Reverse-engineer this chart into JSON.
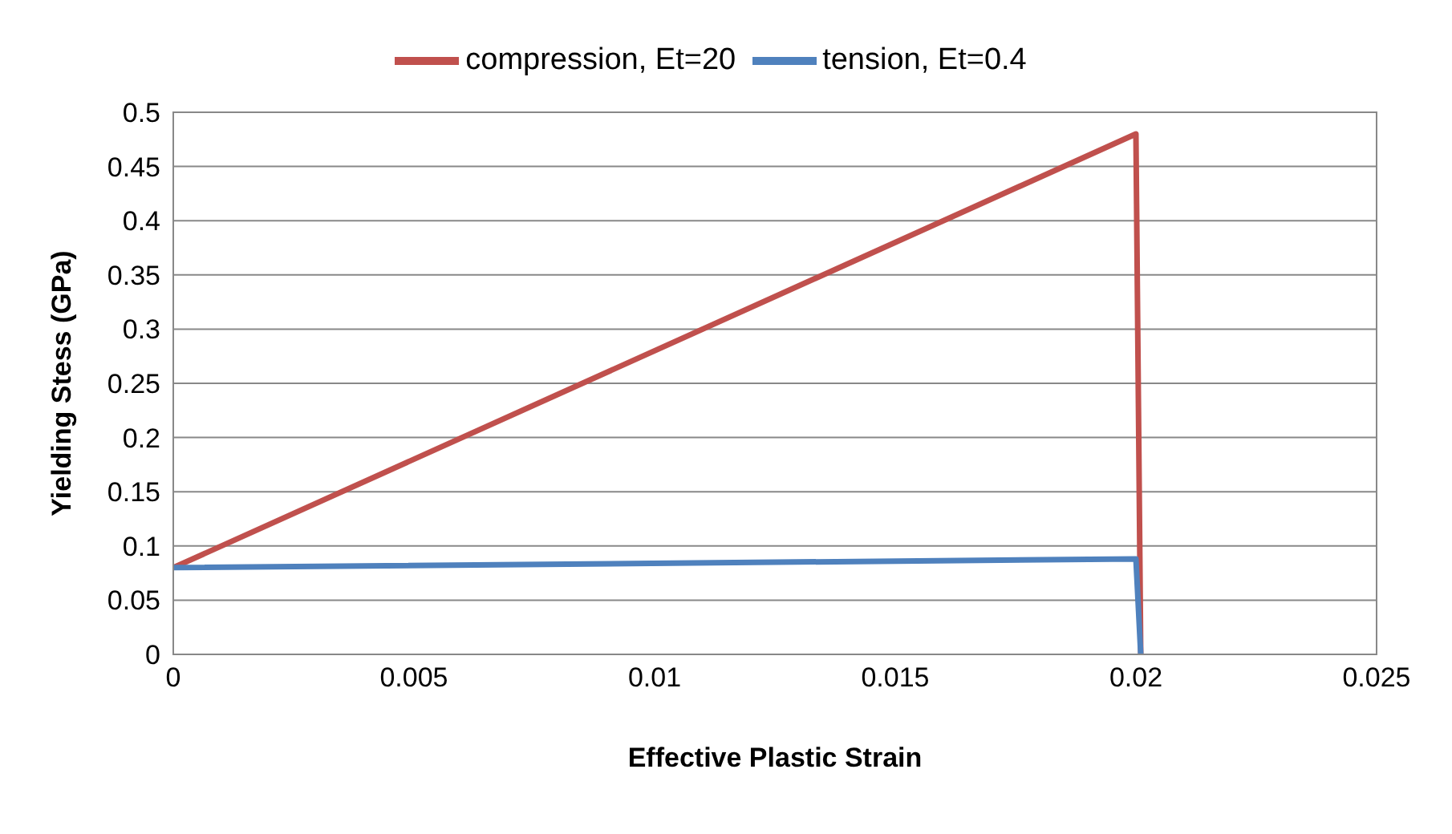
{
  "chart_data": {
    "type": "line",
    "xlabel": "Effective Plastic Strain",
    "ylabel": "Yielding Stess (GPa)",
    "series": [
      {
        "name": "compression, Et=20",
        "color": "#c0504d",
        "x": [
          0,
          0.02,
          0.0201
        ],
        "values": [
          0.08,
          0.48,
          0
        ]
      },
      {
        "name": "tension, Et=0.4",
        "color": "#4f81bd",
        "x": [
          0,
          0.02,
          0.0201
        ],
        "values": [
          0.08,
          0.088,
          0
        ]
      }
    ],
    "xlim": [
      0,
      0.025
    ],
    "xticks": [
      0,
      0.005,
      0.01,
      0.015,
      0.02,
      0.025
    ],
    "ylim": [
      0,
      0.5
    ],
    "yticks": [
      0,
      0.05,
      0.1,
      0.15,
      0.2,
      0.25,
      0.3,
      0.35,
      0.4,
      0.45,
      0.5
    ],
    "grid": "y",
    "legend": "top",
    "marker": "none",
    "line_style": "solid"
  }
}
